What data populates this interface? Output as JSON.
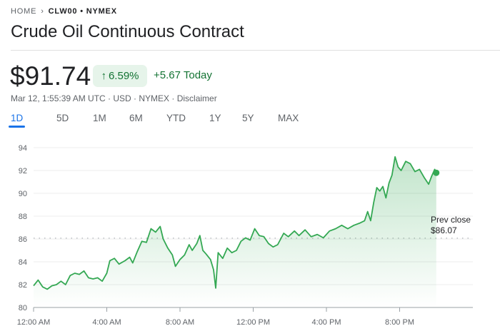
{
  "breadcrumb": {
    "home": "HOME",
    "separator_icon": "chevron-right-icon",
    "current": "CLW00 • NYMEX"
  },
  "title": "Crude Oil Continuous Contract",
  "quote": {
    "price": "$91.74",
    "change_pct": "6.59%",
    "change_icon": "arrow-up-icon",
    "change_today": "+5.67 Today",
    "subline": "Mar 12, 1:55:39 AM UTC · USD · NYMEX · Disclaimer",
    "up_color": "#137333",
    "line_color": "#34a853"
  },
  "tabs": [
    {
      "label": "1D",
      "active": true
    },
    {
      "label": "5D"
    },
    {
      "label": "1M"
    },
    {
      "label": "6M"
    },
    {
      "label": "YTD"
    },
    {
      "label": "1Y"
    },
    {
      "label": "5Y"
    },
    {
      "label": "MAX"
    }
  ],
  "chart_data": {
    "type": "line",
    "ylim": [
      80,
      94
    ],
    "yticks": [
      "94",
      "92",
      "90",
      "88",
      "86",
      "84",
      "82",
      "80"
    ],
    "xticks": [
      "12:00 AM",
      "4:00 AM",
      "8:00 AM",
      "12:00 PM",
      "4:00 PM",
      "8:00 PM"
    ],
    "xrange": [
      "00:00",
      "24:00"
    ],
    "grid": true,
    "prev_close": {
      "label": "Prev close",
      "value_label": "$86.07",
      "value": 86.07
    },
    "series": [
      {
        "points": [
          [
            "00:00",
            81.9
          ],
          [
            "00:15",
            82.4
          ],
          [
            "00:30",
            81.8
          ],
          [
            "00:45",
            81.6
          ],
          [
            "01:00",
            81.9
          ],
          [
            "01:15",
            82.0
          ],
          [
            "01:30",
            82.3
          ],
          [
            "01:45",
            82.0
          ],
          [
            "02:00",
            82.8
          ],
          [
            "02:15",
            83.0
          ],
          [
            "02:30",
            82.9
          ],
          [
            "02:45",
            83.2
          ],
          [
            "03:00",
            82.6
          ],
          [
            "03:15",
            82.5
          ],
          [
            "03:30",
            82.6
          ],
          [
            "03:45",
            82.3
          ],
          [
            "04:00",
            83.0
          ],
          [
            "04:10",
            84.1
          ],
          [
            "04:25",
            84.3
          ],
          [
            "04:40",
            83.8
          ],
          [
            "05:00",
            84.1
          ],
          [
            "05:15",
            84.4
          ],
          [
            "05:25",
            83.9
          ],
          [
            "05:40",
            84.9
          ],
          [
            "05:55",
            85.8
          ],
          [
            "06:10",
            85.7
          ],
          [
            "06:25",
            86.9
          ],
          [
            "06:40",
            86.6
          ],
          [
            "06:55",
            87.1
          ],
          [
            "07:05",
            86.0
          ],
          [
            "07:20",
            85.2
          ],
          [
            "07:35",
            84.6
          ],
          [
            "07:45",
            83.6
          ],
          [
            "08:00",
            84.2
          ],
          [
            "08:15",
            84.6
          ],
          [
            "08:30",
            85.5
          ],
          [
            "08:40",
            85.0
          ],
          [
            "08:55",
            85.6
          ],
          [
            "09:05",
            86.3
          ],
          [
            "09:15",
            85.0
          ],
          [
            "09:25",
            84.7
          ],
          [
            "09:40",
            84.2
          ],
          [
            "09:50",
            83.3
          ],
          [
            "09:57",
            81.7
          ],
          [
            "10:05",
            84.8
          ],
          [
            "10:20",
            84.3
          ],
          [
            "10:35",
            85.2
          ],
          [
            "10:50",
            84.8
          ],
          [
            "11:05",
            85.0
          ],
          [
            "11:20",
            85.8
          ],
          [
            "11:35",
            86.1
          ],
          [
            "11:50",
            85.9
          ],
          [
            "12:05",
            86.9
          ],
          [
            "12:20",
            86.3
          ],
          [
            "12:35",
            86.2
          ],
          [
            "12:50",
            85.6
          ],
          [
            "13:05",
            85.3
          ],
          [
            "13:20",
            85.5
          ],
          [
            "13:40",
            86.5
          ],
          [
            "13:55",
            86.2
          ],
          [
            "14:15",
            86.7
          ],
          [
            "14:30",
            86.3
          ],
          [
            "14:50",
            86.8
          ],
          [
            "15:10",
            86.2
          ],
          [
            "15:30",
            86.4
          ],
          [
            "15:50",
            86.1
          ],
          [
            "16:10",
            86.7
          ],
          [
            "16:30",
            86.9
          ],
          [
            "16:50",
            87.2
          ],
          [
            "17:10",
            86.9
          ],
          [
            "17:30",
            87.2
          ],
          [
            "17:50",
            87.4
          ],
          [
            "18:05",
            87.6
          ],
          [
            "18:15",
            88.4
          ],
          [
            "18:25",
            87.6
          ],
          [
            "18:35",
            89.2
          ],
          [
            "18:45",
            90.5
          ],
          [
            "18:55",
            90.2
          ],
          [
            "19:05",
            90.6
          ],
          [
            "19:15",
            89.6
          ],
          [
            "19:25",
            90.9
          ],
          [
            "19:35",
            91.6
          ],
          [
            "19:45",
            93.2
          ],
          [
            "19:55",
            92.3
          ],
          [
            "20:05",
            92.0
          ],
          [
            "20:20",
            92.8
          ],
          [
            "20:35",
            92.6
          ],
          [
            "20:50",
            91.9
          ],
          [
            "21:05",
            92.1
          ],
          [
            "21:20",
            91.4
          ],
          [
            "21:35",
            90.8
          ],
          [
            "21:45",
            91.5
          ],
          [
            "21:55",
            92.1
          ],
          [
            "22:00",
            91.8
          ]
        ]
      }
    ]
  }
}
